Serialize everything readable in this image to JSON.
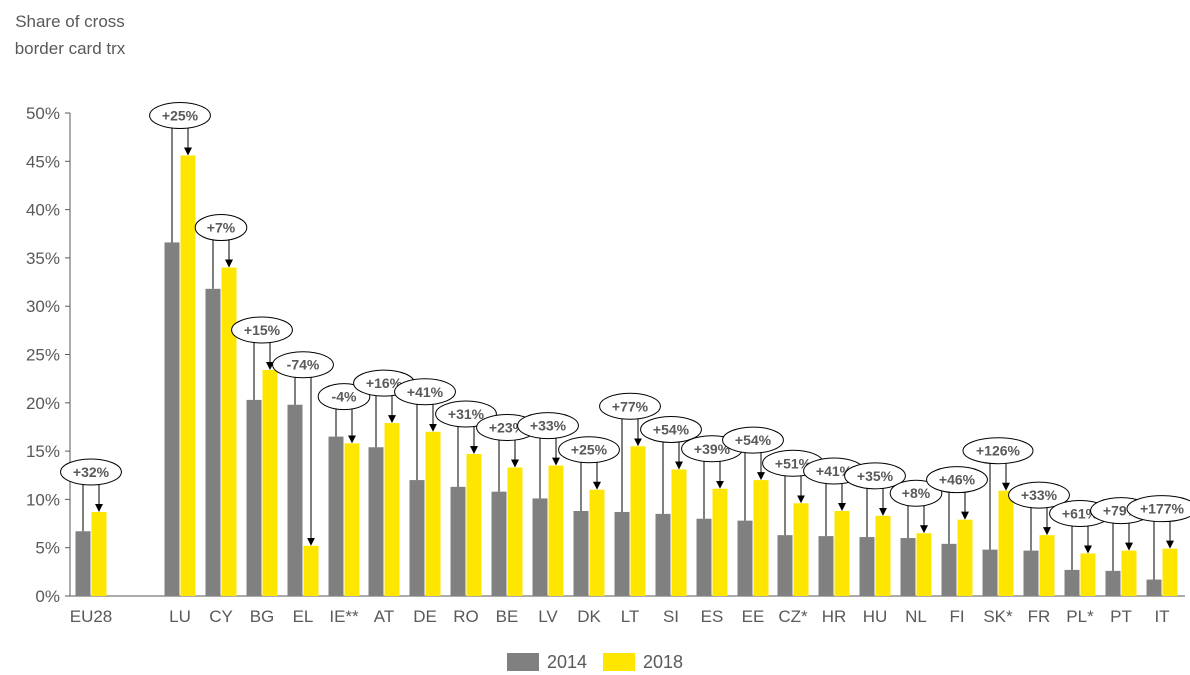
{
  "chart_data": {
    "type": "bar",
    "ylabel": "Share of cross border card trx",
    "ylim": [
      0,
      50
    ],
    "yticks": [
      0,
      5,
      10,
      15,
      20,
      25,
      30,
      35,
      40,
      45,
      50
    ],
    "ytick_labels": [
      "0%",
      "5%",
      "10%",
      "15%",
      "20%",
      "25%",
      "30%",
      "35%",
      "40%",
      "45%",
      "50%"
    ],
    "categories": [
      "EU28",
      "LU",
      "CY",
      "BG",
      "EL",
      "IE**",
      "AT",
      "DE",
      "RO",
      "BE",
      "LV",
      "DK",
      "LT",
      "SI",
      "ES",
      "EE",
      "CZ*",
      "HR",
      "HU",
      "NL",
      "FI",
      "SK*",
      "FR",
      "PL*",
      "PT",
      "IT"
    ],
    "series": [
      {
        "name": "2014",
        "color": "#808080",
        "values": [
          6.7,
          36.6,
          31.8,
          20.3,
          19.8,
          16.5,
          15.4,
          12.0,
          11.3,
          10.8,
          10.1,
          8.8,
          8.7,
          8.5,
          8.0,
          7.8,
          6.3,
          6.2,
          6.1,
          6.0,
          5.4,
          4.8,
          4.7,
          2.7,
          2.6,
          1.7
        ]
      },
      {
        "name": "2018",
        "color": "#FFE600",
        "values": [
          8.7,
          45.6,
          34.0,
          23.4,
          5.2,
          15.8,
          17.9,
          17.0,
          14.7,
          13.3,
          13.5,
          11.0,
          15.5,
          13.1,
          11.1,
          12.0,
          9.6,
          8.8,
          8.3,
          6.5,
          7.9,
          10.9,
          6.3,
          4.4,
          4.7,
          4.9
        ]
      }
    ],
    "annotations": [
      "+32%",
      "+25%",
      "+7%",
      "+15%",
      "-74%",
      "-4%",
      "+16%",
      "+41%",
      "+31%",
      "+23%",
      "+33%",
      "+25%",
      "+77%",
      "+54%",
      "+39%",
      "+54%",
      "+51%",
      "+41%",
      "+35%",
      "+8%",
      "+46%",
      "+126%",
      "+33%",
      "+61%",
      "+79%",
      "+177%"
    ],
    "grid": false,
    "legend_position": "bottom-center"
  }
}
